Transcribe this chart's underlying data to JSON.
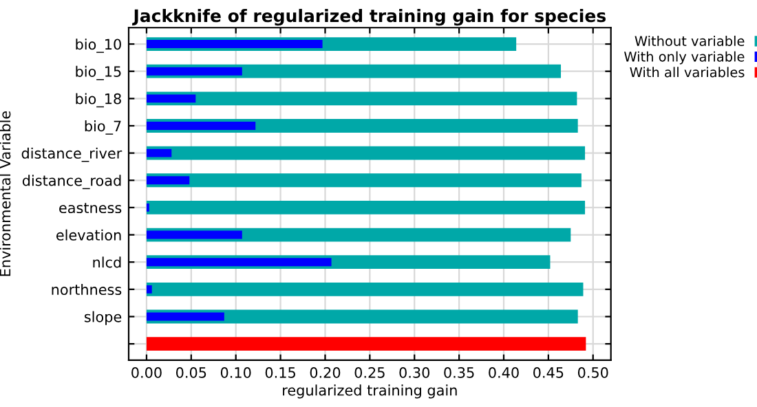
{
  "chart_data": {
    "type": "bar",
    "orientation": "horizontal",
    "title": "Jackknife of regularized training gain for species",
    "xlabel": "regularized training gain",
    "ylabel": "Environmental Variable",
    "categories": [
      "bio_10",
      "bio_15",
      "bio_18",
      "bio_7",
      "distance_river",
      "distance_road",
      "eastness",
      "elevation",
      "nlcd",
      "northness",
      "slope",
      null
    ],
    "series": [
      {
        "name": "Without variable",
        "color": "#00a8a8",
        "values": [
          0.414,
          0.464,
          0.482,
          0.483,
          0.491,
          0.487,
          0.491,
          0.475,
          0.452,
          0.489,
          0.483,
          null
        ]
      },
      {
        "name": "With only variable",
        "color": "#0000ff",
        "values": [
          0.197,
          0.107,
          0.055,
          0.122,
          0.028,
          0.048,
          0.003,
          0.107,
          0.207,
          0.006,
          0.087,
          null
        ]
      },
      {
        "name": "With all variables",
        "color": "#ff0000",
        "values": [
          null,
          null,
          null,
          null,
          null,
          null,
          null,
          null,
          null,
          null,
          null,
          0.492
        ]
      }
    ],
    "xlim": [
      -0.02,
      0.52
    ],
    "xticks": [
      {
        "value": 0,
        "label": "0.00"
      },
      0.05,
      {
        "value": 0.1,
        "label": "0.10"
      },
      0.15,
      {
        "value": 0.2,
        "label": "0.20"
      },
      0.25,
      {
        "value": 0.3,
        "label": "0.30"
      },
      0.35,
      {
        "value": 0.4,
        "label": "0.40"
      },
      0.45,
      {
        "value": 0.5,
        "label": "0.50"
      }
    ],
    "grid": true,
    "legend": "top right"
  }
}
